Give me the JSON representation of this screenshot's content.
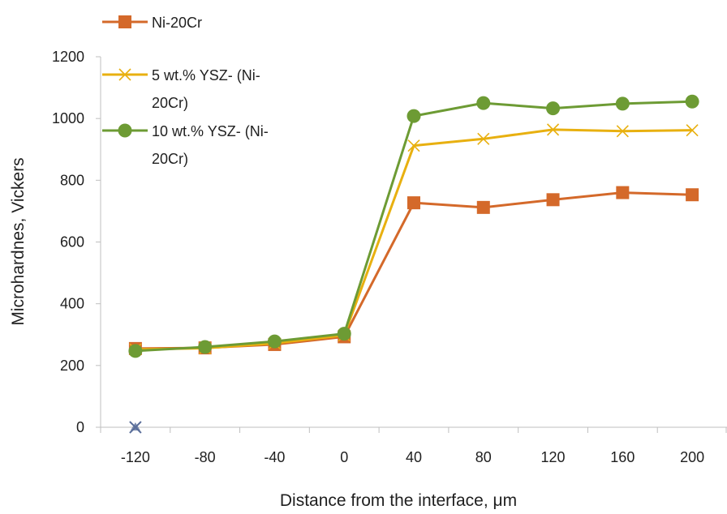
{
  "chart_data": {
    "type": "line",
    "x": [
      -120,
      -80,
      -40,
      0,
      40,
      80,
      120,
      160,
      200
    ],
    "xlabel": "Distance from the interface, μm",
    "ylabel": "Microhardnes, Vickers",
    "ylim": [
      0,
      1200
    ],
    "yticks": [
      0,
      200,
      400,
      600,
      800,
      1000,
      1200
    ],
    "grid": false,
    "legend_position": "top-left",
    "series": [
      {
        "name": "Ni-20Cr",
        "color": "#d4692a",
        "marker": "square",
        "values": [
          255,
          257,
          268,
          293,
          727,
          712,
          737,
          760,
          753
        ]
      },
      {
        "name_lines": [
          "5 wt.% YSZ- (Ni-",
          "20Cr)"
        ],
        "color": "#e8b010",
        "marker": "x",
        "values": [
          252,
          256,
          272,
          298,
          912,
          934,
          964,
          959,
          962
        ]
      },
      {
        "name_lines": [
          "10 wt.% YSZ- (Ni-",
          "20Cr)"
        ],
        "color": "#6d9b34",
        "marker": "circle",
        "values": [
          247,
          260,
          278,
          303,
          1008,
          1050,
          1033,
          1048,
          1055
        ]
      }
    ],
    "extra_points": [
      {
        "x": -120,
        "y": 0,
        "marker": "asterisk",
        "color": "#5a6e9a"
      }
    ]
  }
}
